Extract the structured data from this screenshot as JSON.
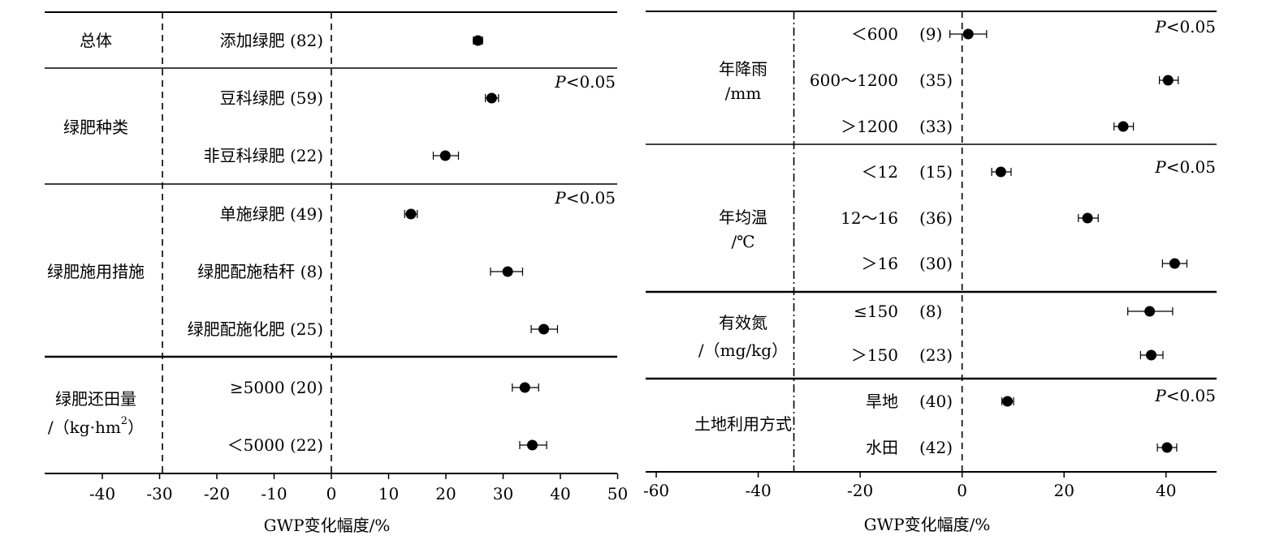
{
  "chart_data": [
    {
      "type": "scatter",
      "style": "forest-plot",
      "xlabel": "GWP变化幅度/%",
      "xlim": [
        -50,
        50
      ],
      "xticks": [
        -40,
        -30,
        -20,
        -10,
        0,
        10,
        20,
        30,
        40,
        50
      ],
      "reference_lines_x": [
        -29.5,
        0
      ],
      "groups": [
        {
          "label": "总体",
          "significance": "",
          "items": [
            {
              "label": "添加绿肥",
              "n": "(82)",
              "value": 25.6,
              "ci": [
                24.8,
                26.4
              ]
            }
          ]
        },
        {
          "label": "绿肥种类",
          "significance": "<0.05",
          "items": [
            {
              "label": "豆科绿肥",
              "n": "(59)",
              "value": 28.0,
              "ci": [
                26.9,
                29.2
              ]
            },
            {
              "label": "非豆科绿肥",
              "n": "(22)",
              "value": 19.9,
              "ci": [
                17.8,
                22.2
              ]
            }
          ]
        },
        {
          "label": "绿肥施用措施",
          "significance": "<0.05",
          "items": [
            {
              "label": "单施绿肥",
              "n": "(49)",
              "value": 13.9,
              "ci": [
                12.8,
                15.0
              ]
            },
            {
              "label": "绿肥配施秸秆",
              "n": "(8)",
              "value": 30.8,
              "ci": [
                27.8,
                33.4
              ]
            },
            {
              "label": "绿肥配施化肥",
              "n": "(25)",
              "value": 37.1,
              "ci": [
                34.9,
                39.5
              ]
            }
          ]
        },
        {
          "label": "绿肥还田量",
          "label2": "/（kg·hm",
          "label2_sup": "2",
          "label2_tail": "）",
          "significance": "",
          "items": [
            {
              "label": "≥5000",
              "n": "(20)",
              "value": 33.8,
              "ci": [
                31.6,
                36.2
              ]
            },
            {
              "label": "＜5000",
              "n": "(22)",
              "value": 35.1,
              "ci": [
                32.9,
                37.6
              ]
            }
          ]
        }
      ]
    },
    {
      "type": "scatter",
      "style": "forest-plot",
      "xlabel": "GWP变化幅度/%",
      "xlim": [
        -62,
        50
      ],
      "xticks": [
        -60,
        -40,
        -20,
        0,
        20,
        40
      ],
      "reference_lines_x": [
        -33,
        0
      ],
      "groups": [
        {
          "label": "年降雨",
          "label2": "/mm",
          "significance": "<0.05",
          "items": [
            {
              "label": "＜600",
              "n": "(9)",
              "value": 1.2,
              "ci": [
                -2.4,
                4.8
              ]
            },
            {
              "label": "600～1200",
              "n": "(35)",
              "value": 40.4,
              "ci": [
                38.7,
                42.4
              ]
            },
            {
              "label": "＞1200",
              "n": "(33)",
              "value": 31.6,
              "ci": [
                29.8,
                33.6
              ]
            }
          ]
        },
        {
          "label": "年均温",
          "label2": "/℃",
          "significance": "<0.05",
          "items": [
            {
              "label": "＜12",
              "n": "(15)",
              "value": 7.6,
              "ci": [
                5.8,
                9.6
              ]
            },
            {
              "label": "12～16",
              "n": "(36)",
              "value": 24.6,
              "ci": [
                22.8,
                26.7
              ]
            },
            {
              "label": "＞16",
              "n": "(30)",
              "value": 41.7,
              "ci": [
                39.3,
                44.1
              ]
            }
          ]
        },
        {
          "label": "有效氮",
          "label2": "/（mg/kg）",
          "significance": "",
          "items": [
            {
              "label": "≤150",
              "n": "(8)",
              "value": 36.8,
              "ci": [
                32.5,
                41.3
              ]
            },
            {
              "label": "＞150",
              "n": "(23)",
              "value": 37.1,
              "ci": [
                35.0,
                39.4
              ]
            }
          ]
        },
        {
          "label": "土地利用方式",
          "significance": "<0.05",
          "items": [
            {
              "label": "旱地",
              "n": "(40)",
              "value": 8.9,
              "ci": [
                7.8,
                10.1
              ]
            },
            {
              "label": "水田",
              "n": "(42)",
              "value": 40.2,
              "ci": [
                38.3,
                42.1
              ]
            }
          ]
        }
      ]
    }
  ]
}
